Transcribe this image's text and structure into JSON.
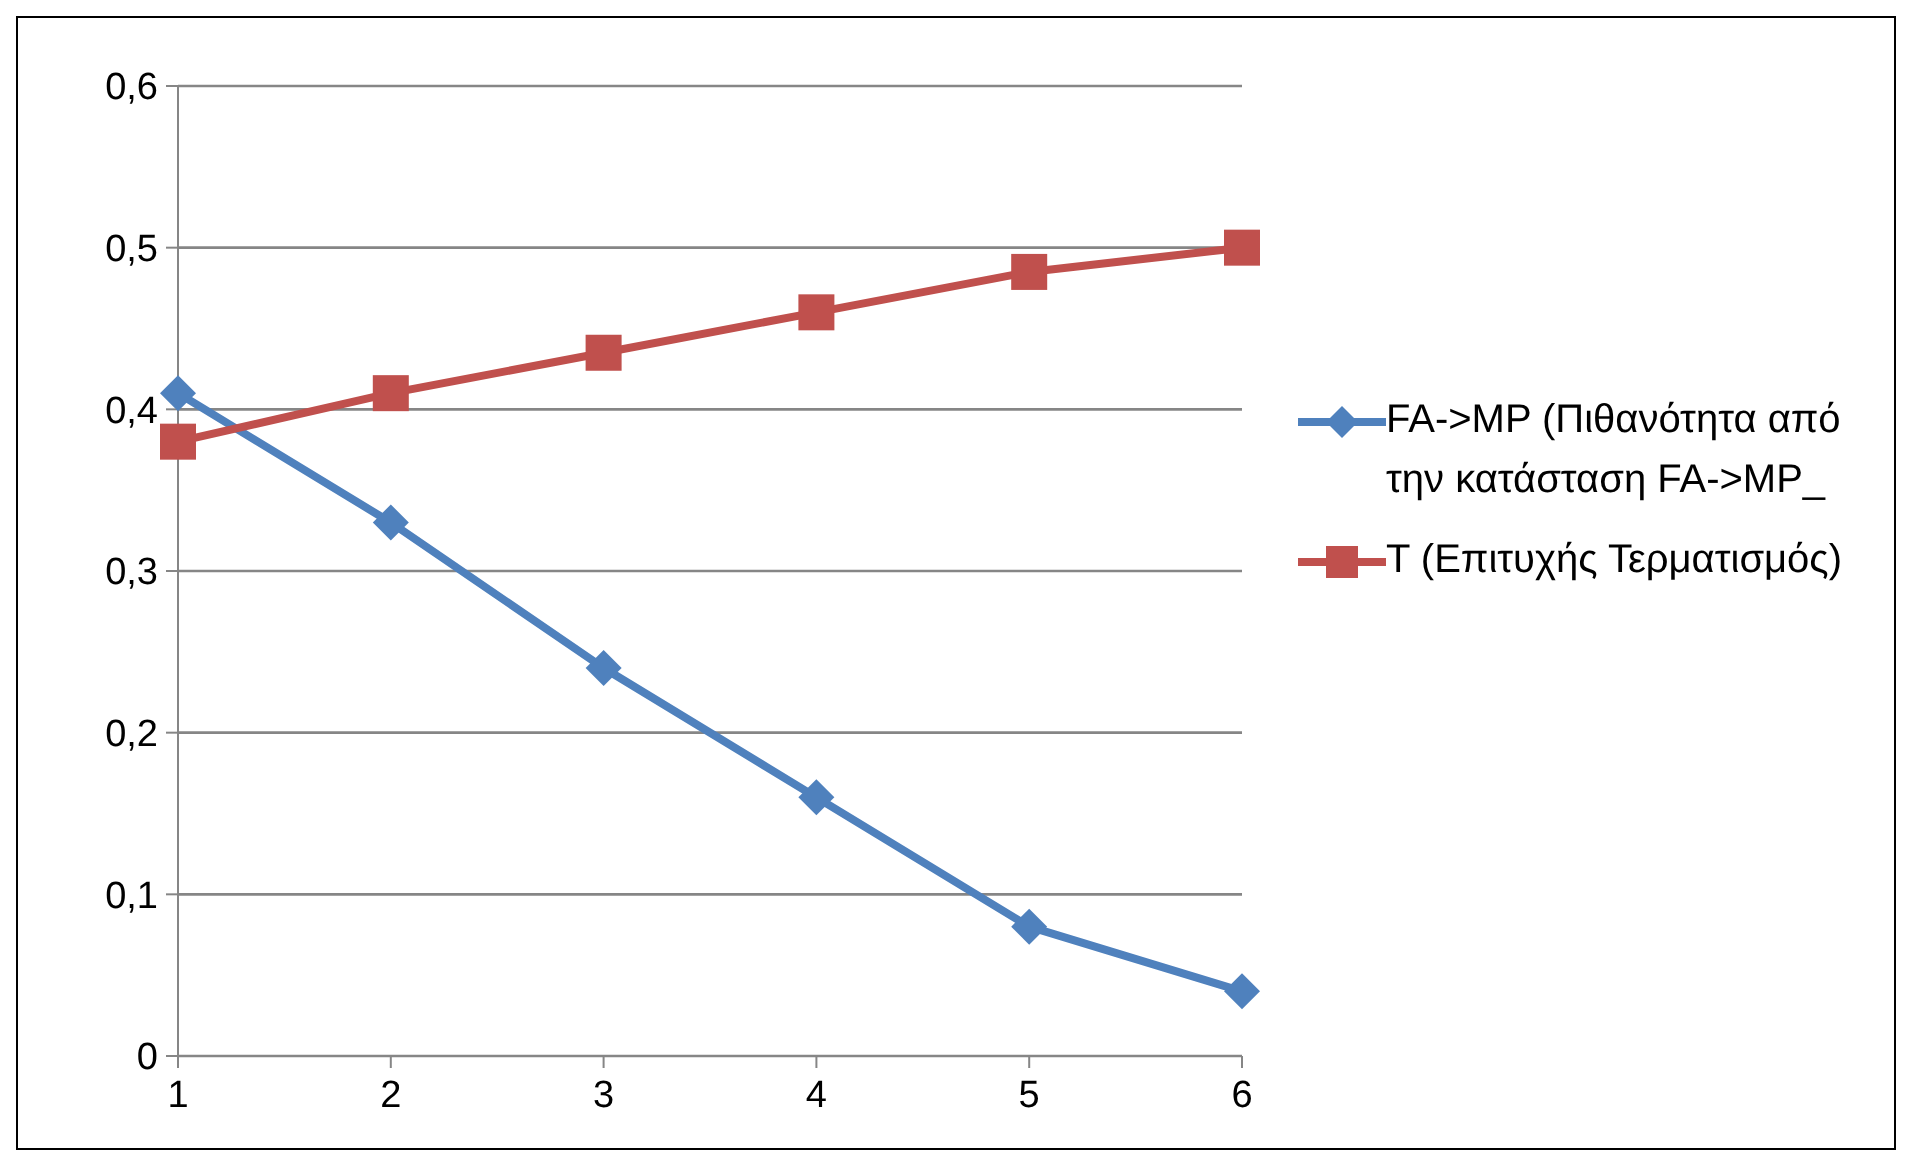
{
  "chart_data": {
    "type": "line",
    "categories": [
      "1",
      "2",
      "3",
      "4",
      "5",
      "6"
    ],
    "series": [
      {
        "name": "FA->MP (Πιθανότητα από την κατάσταση FA->MP_",
        "color": "#4f81bd",
        "marker": "diamond",
        "values": [
          0.41,
          0.33,
          0.24,
          0.16,
          0.08,
          0.04
        ]
      },
      {
        "name": "T (Επιτυχής Τερματισμός)",
        "color": "#c0504d",
        "marker": "square",
        "values": [
          0.38,
          0.41,
          0.435,
          0.46,
          0.485,
          0.5
        ]
      }
    ],
    "ylim": [
      0,
      0.6
    ],
    "yticks": [
      {
        "value": 0,
        "label": "0"
      },
      {
        "value": 0.1,
        "label": "0,1"
      },
      {
        "value": 0.2,
        "label": "0,2"
      },
      {
        "value": 0.3,
        "label": "0,3"
      },
      {
        "value": 0.4,
        "label": "0,4"
      },
      {
        "value": 0.5,
        "label": "0,5"
      },
      {
        "value": 0.6,
        "label": "0,6"
      }
    ],
    "grid": "y",
    "legend": "right",
    "line_style": "solid"
  }
}
